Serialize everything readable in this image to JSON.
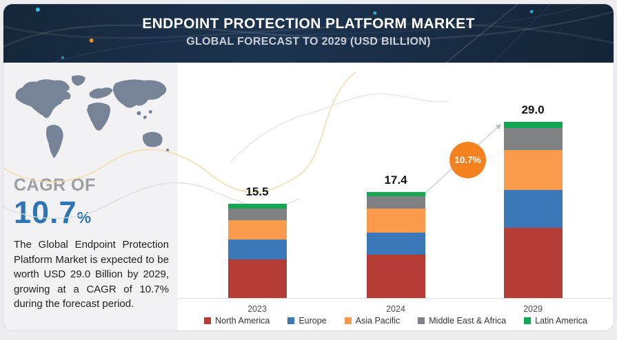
{
  "header": {
    "title": "ENDPOINT PROTECTION PLATFORM MARKET",
    "subtitle": "GLOBAL FORECAST TO 2029 (USD BILLION)"
  },
  "sidebar": {
    "cagr_label": "CAGR OF",
    "cagr_value": "10.7",
    "cagr_unit": "%",
    "description": "The Global Endpoint Protection Platform Market is expected to be worth USD 29.0 Billion by 2029, growing at a CAGR of 10.7% during the forecast period."
  },
  "chart_data": {
    "type": "bar",
    "stacked": true,
    "title": "ENDPOINT PROTECTION PLATform MARKET — GLOBAL FORECAST TO 2029",
    "unit": "USD Billion",
    "categories": [
      "2023",
      "2024",
      "2029"
    ],
    "value_labels": [
      "15.5",
      "17.4",
      "29.0"
    ],
    "totals": [
      15.5,
      17.4,
      29.0
    ],
    "series": [
      {
        "name": "North America",
        "color": "#b53d35",
        "values": [
          6.3,
          7.1,
          11.6
        ]
      },
      {
        "name": "Europe",
        "color": "#3a78b8",
        "values": [
          3.3,
          3.7,
          6.2
        ]
      },
      {
        "name": "Asia Pacific",
        "color": "#f99a4d",
        "values": [
          3.2,
          3.9,
          6.6
        ]
      },
      {
        "name": "Middle East & Africa",
        "color": "#808184",
        "values": [
          1.9,
          2.1,
          3.6
        ]
      },
      {
        "name": "Latin America",
        "color": "#12a852",
        "values": [
          0.8,
          0.6,
          1.0
        ]
      }
    ],
    "annotation": {
      "label": "10.7%",
      "color": "#f5821f"
    },
    "legend_position": "bottom",
    "grid": false,
    "ylim": [
      0,
      30
    ]
  }
}
